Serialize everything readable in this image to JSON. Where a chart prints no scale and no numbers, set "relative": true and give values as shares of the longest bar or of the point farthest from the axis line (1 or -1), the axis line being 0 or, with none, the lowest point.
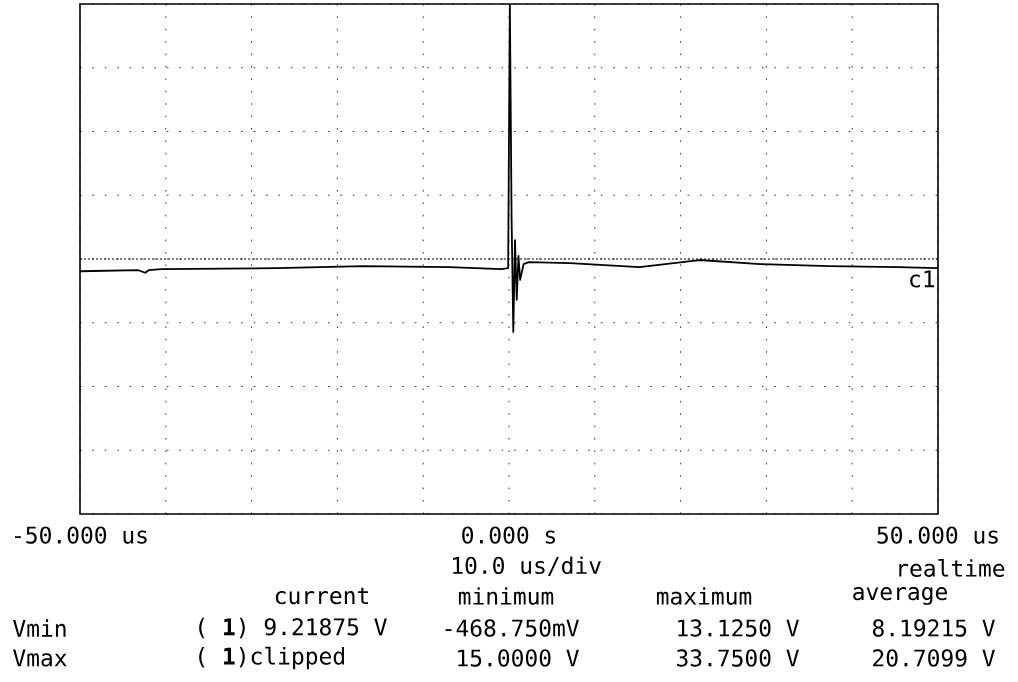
{
  "chart_data": {
    "type": "line",
    "relative": true,
    "xlim": [
      -50,
      50
    ],
    "xticks": [
      {
        "value": -50,
        "label": "-50.000 us"
      },
      {
        "value": -40,
        "label": null
      },
      {
        "value": -30,
        "label": null
      },
      {
        "value": -20,
        "label": null
      },
      {
        "value": -10,
        "label": null
      },
      {
        "value": 0,
        "label": "0.000  s"
      },
      {
        "value": 10,
        "label": null
      },
      {
        "value": 20,
        "label": null
      },
      {
        "value": 30,
        "label": null
      },
      {
        "value": 40,
        "label": null
      },
      {
        "value": 50,
        "label": "50.000 us"
      }
    ],
    "xlabel": "10.0 us/div",
    "grid": true,
    "tick_labels": "x",
    "series": [
      {
        "name": "c1",
        "color": "#000000",
        "x": [
          -50,
          -43.2,
          -42.4,
          -42.0,
          -40.5,
          -27.1,
          -17.0,
          -6.9,
          -0.9,
          -0.1,
          0.1,
          0.3,
          0.5,
          0.7,
          0.9,
          1.1,
          1.3,
          1.7,
          2.3,
          7.1,
          15.2,
          22.2,
          29.3,
          37.3,
          45.4,
          50
        ],
        "values": [
          0.476,
          0.478,
          0.473,
          0.478,
          0.48,
          0.482,
          0.486,
          0.484,
          0.48,
          0.482,
          1,
          0.584,
          0.357,
          0.537,
          0.42,
          0.506,
          0.459,
          0.49,
          0.494,
          0.492,
          0.484,
          0.498,
          0.49,
          0.486,
          0.484,
          0.482
        ]
      }
    ],
    "ref_lines": [
      {
        "axis": "y",
        "value": 0.5,
        "line_style": "dotted"
      }
    ],
    "annotations": [
      "realtime",
      "current",
      "minimum",
      "maximum",
      "average",
      "Vmin",
      "( **1**) 9.21875 V",
      "-468.750mV",
      "13.1250 V",
      "8.19215 V",
      "Vmax",
      "( **1**)clipped",
      "15.0000 V",
      "33.7500 V",
      "20.7099 V"
    ]
  }
}
